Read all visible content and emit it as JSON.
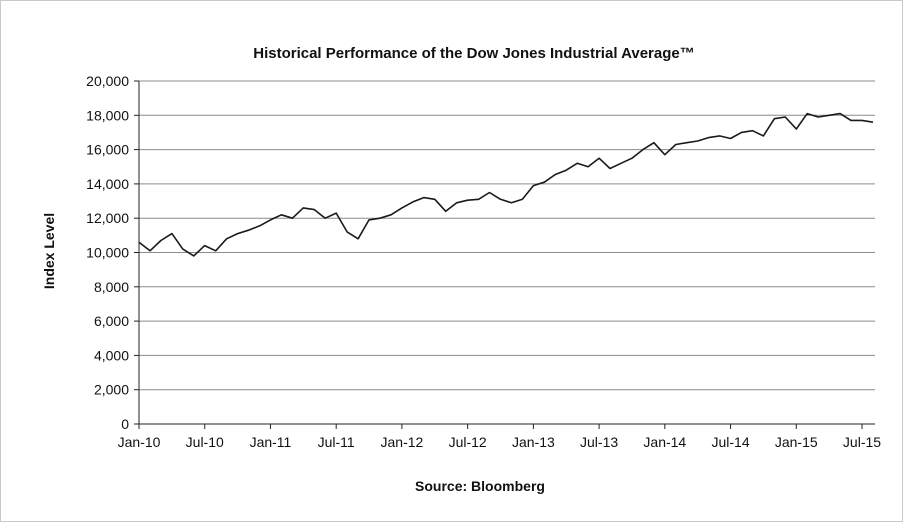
{
  "chart_data": {
    "type": "line",
    "title": "Historical Performance of the Dow Jones Industrial Average™",
    "xlabel": "",
    "ylabel": "Index Level",
    "source": "Source: Bloomberg",
    "ylim": [
      0,
      20000
    ],
    "yticks": [
      0,
      2000,
      4000,
      6000,
      8000,
      10000,
      12000,
      14000,
      16000,
      18000,
      20000
    ],
    "ytick_labels": [
      "0",
      "2,000",
      "4,000",
      "6,000",
      "8,000",
      "10,000",
      "12,000",
      "14,000",
      "16,000",
      "18,000",
      "20,000"
    ],
    "xlim": [
      "2010-01",
      "2015-08"
    ],
    "xticks": [
      "2010-01",
      "2010-07",
      "2011-01",
      "2011-07",
      "2012-01",
      "2012-07",
      "2013-01",
      "2013-07",
      "2014-01",
      "2014-07",
      "2015-01",
      "2015-07"
    ],
    "xtick_labels": [
      "Jan-10",
      "Jul-10",
      "Jan-11",
      "Jul-11",
      "Jan-12",
      "Jul-12",
      "Jan-13",
      "Jul-13",
      "Jan-14",
      "Jul-14",
      "Jan-15",
      "Jul-15"
    ],
    "grid": true,
    "line_color": "#1a1a1a",
    "grid_color": "#8c8c8c",
    "series": [
      {
        "x": [
          "2010-01",
          "2010-02",
          "2010-03",
          "2010-04",
          "2010-05",
          "2010-06",
          "2010-07",
          "2010-08",
          "2010-09",
          "2010-10",
          "2010-11",
          "2010-12",
          "2011-01",
          "2011-02",
          "2011-03",
          "2011-04",
          "2011-05",
          "2011-06",
          "2011-07",
          "2011-08",
          "2011-09",
          "2011-10",
          "2011-11",
          "2011-12",
          "2012-01",
          "2012-02",
          "2012-03",
          "2012-04",
          "2012-05",
          "2012-06",
          "2012-07",
          "2012-08",
          "2012-09",
          "2012-10",
          "2012-11",
          "2012-12",
          "2013-01",
          "2013-02",
          "2013-03",
          "2013-04",
          "2013-05",
          "2013-06",
          "2013-07",
          "2013-08",
          "2013-09",
          "2013-10",
          "2013-11",
          "2013-12",
          "2014-01",
          "2014-02",
          "2014-03",
          "2014-04",
          "2014-05",
          "2014-06",
          "2014-07",
          "2014-08",
          "2014-09",
          "2014-10",
          "2014-11",
          "2014-12",
          "2015-01",
          "2015-02",
          "2015-03",
          "2015-04",
          "2015-05",
          "2015-06",
          "2015-07",
          "2015-08"
        ],
        "y": [
          10600,
          10100,
          10700,
          11100,
          10200,
          9800,
          10400,
          10100,
          10800,
          11100,
          11300,
          11550,
          11900,
          12200,
          12000,
          12600,
          12500,
          12000,
          12300,
          11200,
          10800,
          11900,
          12000,
          12200,
          12600,
          12950,
          13200,
          13100,
          12400,
          12900,
          13050,
          13100,
          13500,
          13100,
          12900,
          13100,
          13900,
          14100,
          14550,
          14800,
          15200,
          15000,
          15500,
          14900,
          15200,
          15500,
          16000,
          16400,
          15700,
          16300,
          16400,
          16500,
          16700,
          16800,
          16650,
          17000,
          17100,
          16800,
          17800,
          17900,
          17200,
          18100,
          17900,
          18000,
          18100,
          17700,
          17700,
          17600
        ]
      }
    ]
  }
}
